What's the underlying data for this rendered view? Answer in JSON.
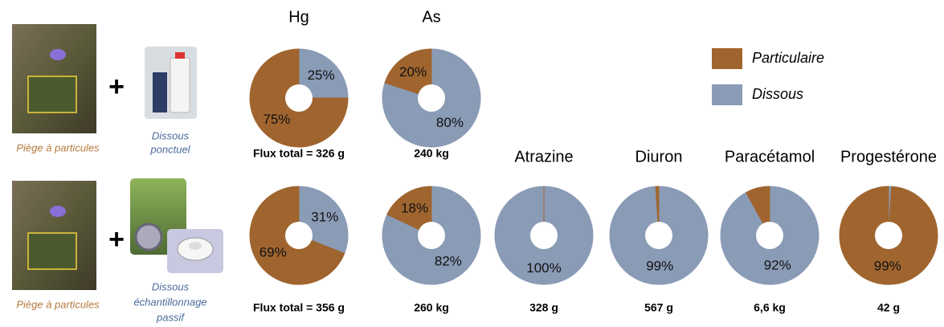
{
  "rows": [
    {
      "trap_label": "Piège à particules",
      "plus": "+",
      "dissolved_label": [
        "Dissous",
        "ponctuel"
      ]
    },
    {
      "trap_label": "Piège à particules",
      "plus": "+",
      "dissolved_label": [
        "Dissous",
        "échantillonnage",
        "passif"
      ]
    }
  ],
  "chart_data": [
    {
      "type": "pie",
      "title": "Hg",
      "categories": [
        "Particulaire",
        "Dissous"
      ],
      "colors": [
        "#a0652f",
        "#8a9bb6"
      ],
      "values": [
        75,
        25
      ],
      "value_labels": [
        "75%",
        "25%"
      ],
      "note": "Flux total = 326 g"
    },
    {
      "type": "pie",
      "title": "As",
      "categories": [
        "Particulaire",
        "Dissous"
      ],
      "colors": [
        "#a0652f",
        "#8a9bb6"
      ],
      "values": [
        20,
        80
      ],
      "value_labels": [
        "20%",
        "80%"
      ],
      "note": "240 kg"
    },
    {
      "type": "pie",
      "categories": [
        "Particulaire",
        "Dissous"
      ],
      "colors": [
        "#a0652f",
        "#8a9bb6"
      ],
      "values": [
        69,
        31
      ],
      "value_labels": [
        "69%",
        "31%"
      ],
      "note": "Flux total = 356 g"
    },
    {
      "type": "pie",
      "categories": [
        "Particulaire",
        "Dissous"
      ],
      "colors": [
        "#a0652f",
        "#8a9bb6"
      ],
      "values": [
        18,
        82
      ],
      "value_labels": [
        "18%",
        "82%"
      ],
      "note": "260 kg"
    },
    {
      "type": "pie",
      "title": "Atrazine",
      "categories": [
        "Particulaire",
        "Dissous"
      ],
      "colors": [
        "#a0652f",
        "#8a9bb6"
      ],
      "values": [
        0,
        100
      ],
      "value_labels": [
        null,
        "100%"
      ],
      "note": "328 g"
    },
    {
      "type": "pie",
      "title": "Diuron",
      "categories": [
        "Particulaire",
        "Dissous"
      ],
      "colors": [
        "#a0652f",
        "#8a9bb6"
      ],
      "values": [
        1,
        99
      ],
      "value_labels": [
        null,
        "99%"
      ],
      "note": "567 g"
    },
    {
      "type": "pie",
      "title": "Paracétamol",
      "categories": [
        "Particulaire",
        "Dissous"
      ],
      "colors": [
        "#a0652f",
        "#8a9bb6"
      ],
      "values": [
        8,
        92
      ],
      "value_labels": [
        null,
        "92%"
      ],
      "note": "6,6 kg"
    },
    {
      "type": "pie",
      "title": "Progestérone",
      "categories": [
        "Particulaire",
        "Dissous"
      ],
      "colors": [
        "#a0652f",
        "#8a9bb6"
      ],
      "values": [
        99,
        1
      ],
      "value_labels": [
        "99%",
        null
      ],
      "note": "42 g"
    }
  ]
}
